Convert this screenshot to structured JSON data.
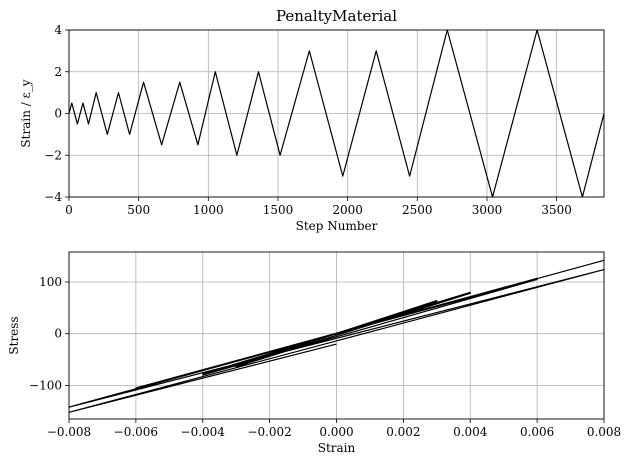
{
  "chart_data": [
    {
      "type": "line",
      "title": "PenaltyMaterial",
      "xlabel": "Step Number",
      "ylabel": "Strain / ε_y",
      "xlim": [
        0,
        3840
      ],
      "ylim": [
        -4,
        4
      ],
      "xticks": [
        0,
        500,
        1000,
        1500,
        2000,
        2500,
        3000,
        3500
      ],
      "xtick_labels": [
        "0",
        "500",
        "1000",
        "1500",
        "2000",
        "2500",
        "3000",
        "3500"
      ],
      "yticks": [
        -4,
        -2,
        0,
        2,
        4
      ],
      "ytick_labels": [
        "−4",
        "−2",
        "0",
        "2",
        "4"
      ],
      "grid": true,
      "series": [
        {
          "x": [
            0,
            20,
            60,
            100,
            140,
            195,
            275,
            355,
            435,
            535,
            665,
            795,
            925,
            1050,
            1205,
            1360,
            1515,
            1725,
            1965,
            2205,
            2445,
            2715,
            3040,
            3360,
            3685,
            3840
          ],
          "y": [
            0,
            0.5,
            -0.5,
            0.5,
            -0.5,
            1.0,
            -1.0,
            1.0,
            -1.0,
            1.5,
            -1.5,
            1.5,
            -1.5,
            2.0,
            -2.0,
            2.0,
            -2.0,
            3.0,
            -3.0,
            3.0,
            -3.0,
            4.0,
            -4.0,
            4.0,
            -4.0,
            0
          ]
        }
      ]
    },
    {
      "type": "line",
      "title": "",
      "xlabel": "Strain",
      "ylabel": "Stress",
      "xlim": [
        -0.008,
        0.008
      ],
      "ylim": [
        -165,
        158
      ],
      "xticks": [
        -0.008,
        -0.006,
        -0.004,
        -0.002,
        0.0,
        0.002,
        0.004,
        0.006,
        0.008
      ],
      "xtick_labels": [
        "−0.008",
        "−0.006",
        "−0.004",
        "−0.002",
        "0.000",
        "0.002",
        "0.004",
        "0.006",
        "0.008"
      ],
      "yticks": [
        -100,
        0,
        100
      ],
      "ytick_labels": [
        "−100",
        "0",
        "100"
      ],
      "grid": true,
      "series": [
        {
          "x": [
            0,
            0.001,
            -0.001,
            0.001,
            -0.001,
            0.002,
            -0.002,
            0.002,
            -0.002,
            0.003,
            -0.003,
            0.003,
            -0.003,
            0.004,
            -0.004,
            0.004,
            -0.004,
            0.006,
            -0.006,
            0.006,
            -0.006,
            0.008,
            -0.008,
            0.008,
            -0.008,
            0
          ],
          "y": [
            0,
            21,
            -21,
            21,
            -21,
            42,
            -42,
            42,
            -42,
            63,
            -63,
            64,
            -64,
            78,
            -78,
            80,
            -80,
            105,
            -105,
            107,
            -107,
            142,
            -142,
            124,
            -152,
            -20
          ]
        }
      ]
    }
  ]
}
